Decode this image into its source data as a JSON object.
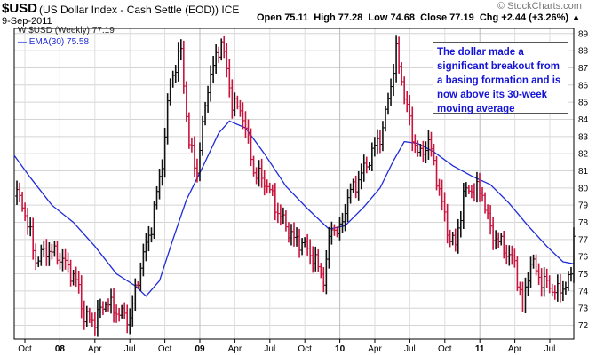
{
  "header": {
    "symbol": "$USD",
    "name": "(US Dollar Index - Cash Settle (EOD))",
    "exchange": "ICE",
    "date": "9-Sep-2011",
    "open_label": "Open",
    "open": "75.11",
    "high_label": "High",
    "high": "77.28",
    "low_label": "Low",
    "low": "74.68",
    "close_label": "Close",
    "close": "77.19",
    "chg_label": "Chg",
    "chg": "+2.44 (+3.26%)",
    "chg_arrow": "▲",
    "watermark": "© StockCharts.com"
  },
  "legend": {
    "close_marker": "W",
    "close_label": "$USD (Weekly) 77.19",
    "ema_label": "EMA(30) 75.58"
  },
  "annotation": {
    "text": "The dollar made a significant breakout from a basing formation and is now above its 30-week moving average"
  },
  "colors": {
    "up_bar": "#111111",
    "down_bar": "#c8153e",
    "ema_line": "#1f2bd8",
    "annotation_text": "#1414d6"
  },
  "chart_data": {
    "type": "line",
    "chart_style": "weekly bar chart with moving average overlay",
    "ylim": [
      71.2,
      89.3
    ],
    "y_ticks": [
      72,
      73,
      74,
      75,
      76,
      77,
      78,
      79,
      80,
      81,
      82,
      83,
      84,
      85,
      86,
      87,
      88,
      89
    ],
    "y_axis_side": "right",
    "grid": true,
    "x_ticks": [
      "Oct",
      "08",
      "Apr",
      "Jul",
      "Oct",
      "09",
      "Apr",
      "Jul",
      "Oct",
      "10",
      "Apr",
      "Jul",
      "Oct",
      "11",
      "Apr",
      "Jul"
    ],
    "major_x_ticks": [
      "08",
      "09",
      "10",
      "11"
    ],
    "x_start": "2007-09-14",
    "x_end": "2011-09-09",
    "series": [
      {
        "name": "$USD (Weekly)",
        "style": "bars",
        "points": [
          [
            "2007-09-14",
            80.0
          ],
          [
            "2007-10-12",
            78.6
          ],
          [
            "2007-11-09",
            75.8
          ],
          [
            "2007-12-07",
            76.4
          ],
          [
            "2008-01-04",
            76.1
          ],
          [
            "2008-02-01",
            75.4
          ],
          [
            "2008-02-29",
            74.2
          ],
          [
            "2008-03-14",
            72.4
          ],
          [
            "2008-04-11",
            72.3
          ],
          [
            "2008-05-09",
            73.4
          ],
          [
            "2008-06-06",
            72.8
          ],
          [
            "2008-07-11",
            72.4
          ],
          [
            "2008-08-08",
            75.5
          ],
          [
            "2008-09-05",
            77.8
          ],
          [
            "2008-10-03",
            81.5
          ],
          [
            "2008-10-24",
            86.2
          ],
          [
            "2008-11-21",
            88.0
          ],
          [
            "2008-12-12",
            82.5
          ],
          [
            "2009-01-02",
            81.0
          ],
          [
            "2009-01-30",
            86.0
          ],
          [
            "2009-03-06",
            88.6
          ],
          [
            "2009-04-03",
            85.0
          ],
          [
            "2009-05-01",
            84.3
          ],
          [
            "2009-05-29",
            81.0
          ],
          [
            "2009-07-03",
            80.2
          ],
          [
            "2009-07-31",
            78.6
          ],
          [
            "2009-09-11",
            77.0
          ],
          [
            "2009-10-02",
            76.8
          ],
          [
            "2009-10-30",
            76.0
          ],
          [
            "2009-11-27",
            74.7
          ],
          [
            "2009-12-18",
            77.8
          ],
          [
            "2010-01-08",
            77.4
          ],
          [
            "2010-01-29",
            79.5
          ],
          [
            "2010-02-26",
            80.5
          ],
          [
            "2010-03-26",
            81.7
          ],
          [
            "2010-04-30",
            83.4
          ],
          [
            "2010-06-04",
            87.9
          ],
          [
            "2010-06-25",
            85.5
          ],
          [
            "2010-07-16",
            83.0
          ],
          [
            "2010-08-06",
            81.8
          ],
          [
            "2010-08-27",
            82.8
          ],
          [
            "2010-09-24",
            79.9
          ],
          [
            "2010-10-15",
            77.5
          ],
          [
            "2010-11-05",
            76.6
          ],
          [
            "2010-11-26",
            79.6
          ],
          [
            "2010-12-17",
            80.0
          ],
          [
            "2011-01-14",
            79.7
          ],
          [
            "2011-02-04",
            77.5
          ],
          [
            "2011-03-04",
            76.7
          ],
          [
            "2011-04-08",
            75.6
          ],
          [
            "2011-04-29",
            73.1
          ],
          [
            "2011-05-20",
            75.8
          ],
          [
            "2011-06-10",
            74.8
          ],
          [
            "2011-07-01",
            74.4
          ],
          [
            "2011-07-29",
            73.9
          ],
          [
            "2011-08-26",
            74.6
          ],
          [
            "2011-09-02",
            74.8
          ],
          [
            "2011-09-09",
            77.19
          ]
        ]
      },
      {
        "name": "EMA(30)",
        "style": "line",
        "points": [
          [
            "2007-09-14",
            81.9
          ],
          [
            "2007-10-26",
            80.6
          ],
          [
            "2007-12-21",
            79.0
          ],
          [
            "2008-02-15",
            78.0
          ],
          [
            "2008-04-11",
            76.6
          ],
          [
            "2008-06-06",
            75.0
          ],
          [
            "2008-07-25",
            74.3
          ],
          [
            "2008-08-22",
            73.7
          ],
          [
            "2008-09-26",
            74.6
          ],
          [
            "2008-10-31",
            77.0
          ],
          [
            "2008-12-05",
            79.3
          ],
          [
            "2009-01-16",
            81.2
          ],
          [
            "2009-02-27",
            83.2
          ],
          [
            "2009-03-27",
            83.9
          ],
          [
            "2009-05-08",
            83.5
          ],
          [
            "2009-06-26",
            82.0
          ],
          [
            "2009-08-21",
            80.1
          ],
          [
            "2009-10-16",
            78.8
          ],
          [
            "2009-12-11",
            77.6
          ],
          [
            "2010-01-22",
            77.8
          ],
          [
            "2010-03-12",
            78.9
          ],
          [
            "2010-04-23",
            80.0
          ],
          [
            "2010-05-28",
            81.6
          ],
          [
            "2010-06-25",
            82.7
          ],
          [
            "2010-07-30",
            82.6
          ],
          [
            "2010-09-10",
            82.1
          ],
          [
            "2010-10-29",
            81.3
          ],
          [
            "2010-12-17",
            80.7
          ],
          [
            "2011-02-04",
            80.2
          ],
          [
            "2011-03-25",
            79.1
          ],
          [
            "2011-05-13",
            77.8
          ],
          [
            "2011-07-01",
            76.6
          ],
          [
            "2011-08-12",
            75.7
          ],
          [
            "2011-09-09",
            75.58
          ]
        ]
      }
    ]
  }
}
